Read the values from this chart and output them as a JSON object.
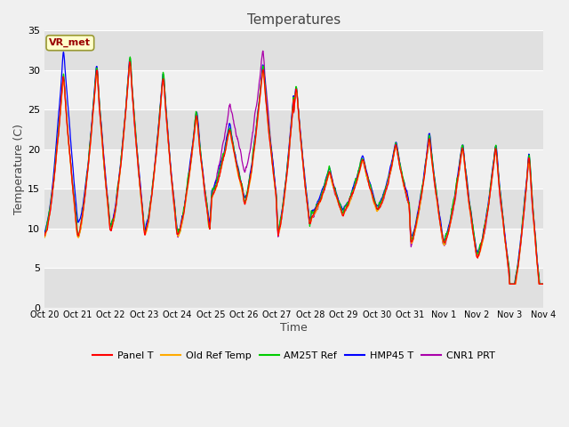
{
  "title": "Temperatures",
  "xlabel": "Time",
  "ylabel": "Temperature (C)",
  "ylim": [
    0,
    35
  ],
  "xlim": [
    0,
    15
  ],
  "tick_labels": [
    "Oct 20",
    "Oct 21",
    "Oct 22",
    "Oct 23",
    "Oct 24",
    "Oct 25",
    "Oct 26",
    "Oct 27",
    "Oct 28",
    "Oct 29",
    "Oct 30",
    "Oct 31",
    "Nov 1",
    "Nov 2",
    "Nov 3",
    "Nov 4"
  ],
  "yticks": [
    0,
    5,
    10,
    15,
    20,
    25,
    30,
    35
  ],
  "series_colors": {
    "Panel T": "#ff0000",
    "Old Ref Temp": "#ffaa00",
    "AM25T Ref": "#00cc00",
    "HMP45 T": "#0000ff",
    "CNR1 PRT": "#aa00aa"
  },
  "vr_met_label": "VR_met",
  "vr_met_color": "#990000",
  "vr_met_bg": "#ffffcc",
  "vr_met_edge": "#999933",
  "bg_light": "#f0f0f0",
  "bg_band_light": "#f0f0f0",
  "bg_band_dark": "#e0e0e0",
  "grid_color": "#ffffff",
  "n_points": 2000,
  "seed": 7
}
